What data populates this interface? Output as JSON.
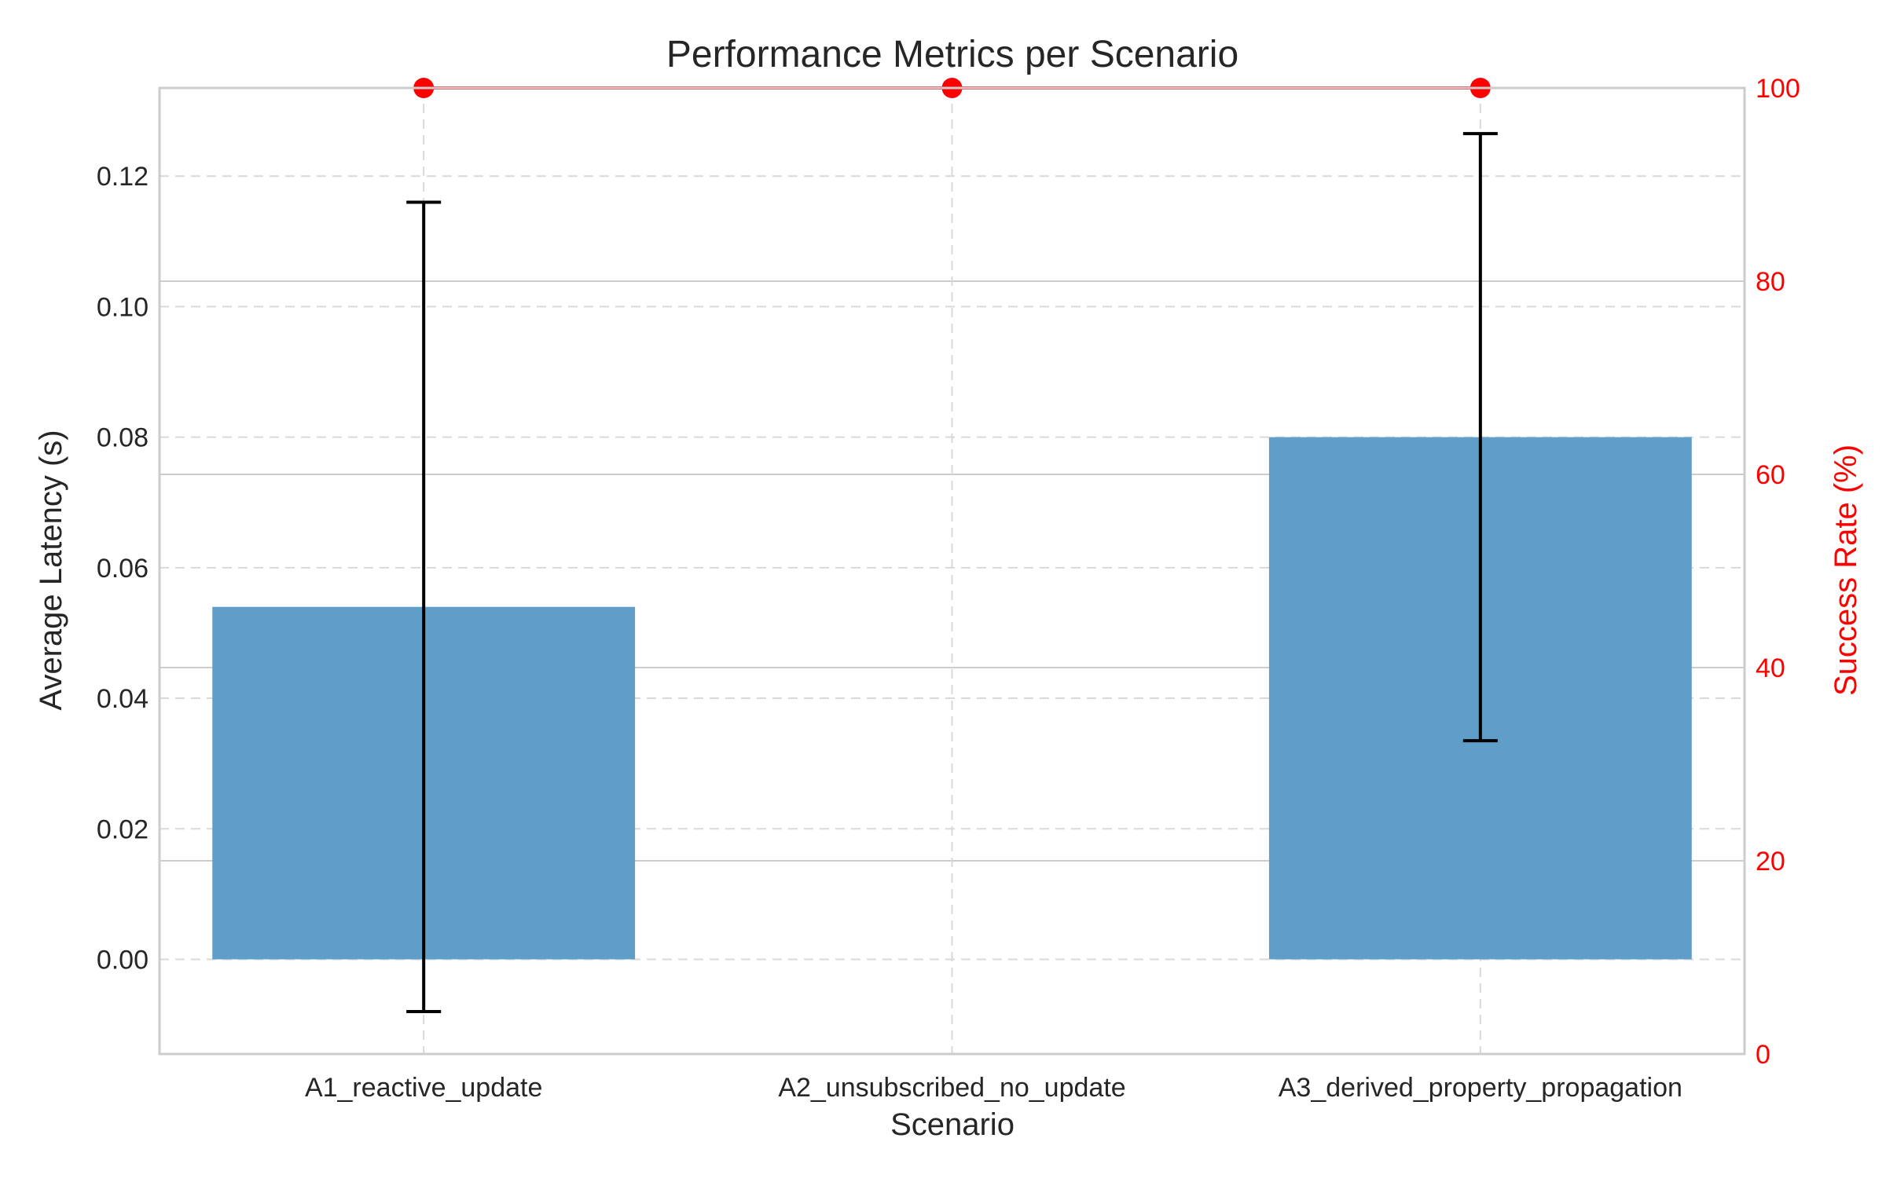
{
  "chart_data": {
    "type": "bar",
    "title": "Performance Metrics per Scenario",
    "xlabel": "Scenario",
    "ylabel": "Average Latency (s)",
    "y2label": "Success Rate (%)",
    "categories": [
      "A1_reactive_update",
      "A2_unsubscribed_no_update",
      "A3_derived_property_propagation"
    ],
    "ylim": [
      -0.0145,
      0.1335
    ],
    "yticks": [
      0.0,
      0.02,
      0.04,
      0.06,
      0.08,
      0.1,
      0.12
    ],
    "y2lim": [
      0,
      100
    ],
    "y2ticks": [
      0,
      20,
      40,
      60,
      80,
      100
    ],
    "grid": true,
    "series": [
      {
        "name": "Average Latency (s)",
        "kind": "bar",
        "axis": "left",
        "color": "#5f9ec9",
        "values": [
          0.054,
          0.0,
          0.08
        ],
        "error": [
          0.062,
          0.0,
          0.0465
        ]
      },
      {
        "name": "Success Rate (%)",
        "kind": "line",
        "axis": "right",
        "color": "#ff0000",
        "values": [
          100,
          100,
          100
        ]
      }
    ]
  }
}
